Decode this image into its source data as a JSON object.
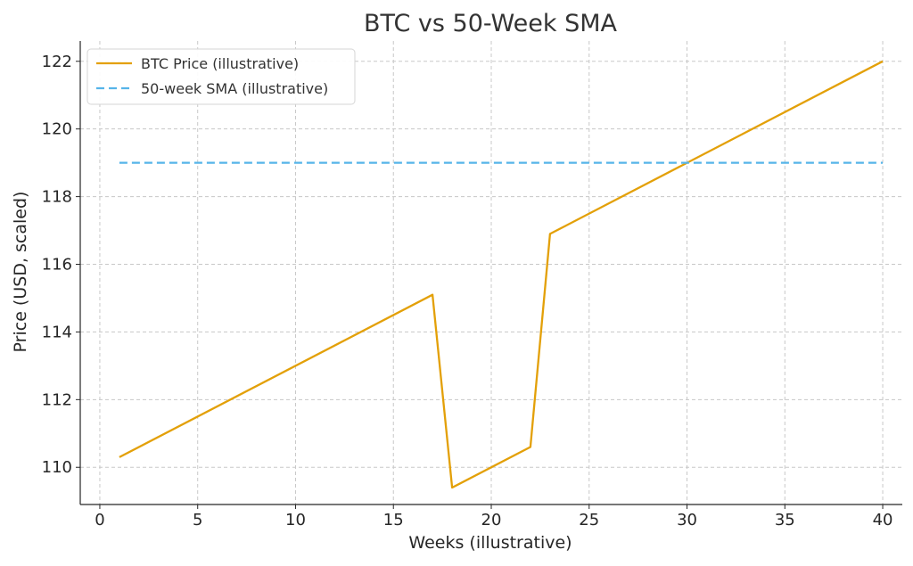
{
  "chart_data": {
    "type": "line",
    "title": "BTC vs 50-Week SMA",
    "xlabel": "Weeks (illustrative)",
    "ylabel": "Price (USD, scaled)",
    "xlim": [
      -1,
      41
    ],
    "ylim": [
      108.9,
      122.6
    ],
    "x_ticks": [
      0,
      5,
      10,
      15,
      20,
      25,
      30,
      35,
      40
    ],
    "y_ticks": [
      110,
      112,
      114,
      116,
      118,
      120,
      122
    ],
    "grid": true,
    "legend_position": "top-left",
    "series": [
      {
        "name": "BTC Price (illustrative)",
        "color": "#E3A008",
        "style": "solid",
        "points": [
          [
            1,
            110.3
          ],
          [
            17,
            115.1
          ],
          [
            18,
            109.4
          ],
          [
            22,
            110.6
          ],
          [
            23,
            116.9
          ],
          [
            40,
            122.0
          ]
        ]
      },
      {
        "name": "50-week SMA (illustrative)",
        "color": "#56B4E9",
        "style": "dashed",
        "points": [
          [
            1,
            119.0
          ],
          [
            40,
            119.0
          ]
        ]
      }
    ]
  }
}
